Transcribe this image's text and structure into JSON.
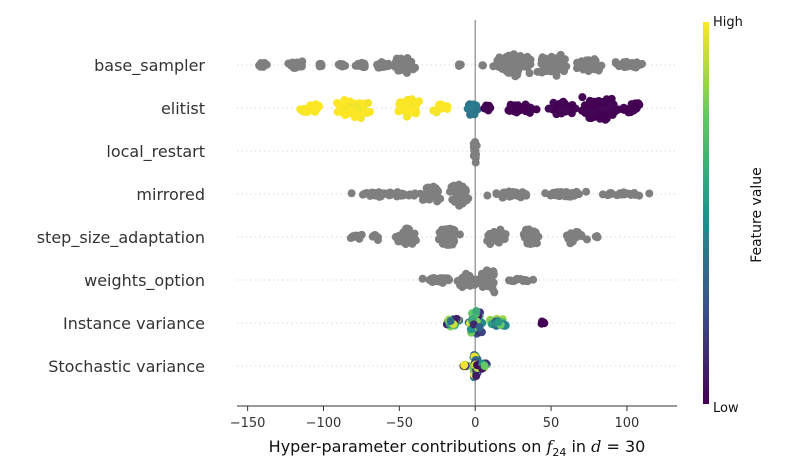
{
  "chart_data": {
    "type": "scatter",
    "subtype": "beeswarm",
    "xlabel": {
      "prefix": "Hyper-parameter contributions on ",
      "f_base": "f",
      "f_sub": "24",
      "middle": " in ",
      "d_var": "d",
      "d_rest": " = 30"
    },
    "xlim": [
      -157,
      133
    ],
    "xticks": [
      -150,
      -100,
      -50,
      0,
      50,
      100
    ],
    "xtick_labels": [
      "−150",
      "−100",
      "−50",
      "0",
      "50",
      "100"
    ],
    "grid": false,
    "zero_line": 0,
    "colorbar": {
      "title": "Feature value",
      "high_label": "High",
      "low_label": "Low",
      "colormap": [
        "#440154",
        "#3b528b",
        "#21918c",
        "#5ec962",
        "#fde725"
      ]
    },
    "features": [
      {
        "name": "base_sampler",
        "colored": false,
        "color": "#7f7f7f",
        "clusters": [
          {
            "x": -140,
            "spread": 3,
            "count": 10,
            "width": 0.2
          },
          {
            "x": -118,
            "spread": 6,
            "count": 22,
            "width": 0.4
          },
          {
            "x": -102,
            "spread": 2,
            "count": 6,
            "width": 0.15
          },
          {
            "x": -88,
            "spread": 3,
            "count": 12,
            "width": 0.2
          },
          {
            "x": -75,
            "spread": 5,
            "count": 18,
            "width": 0.25
          },
          {
            "x": -62,
            "spread": 5,
            "count": 16,
            "width": 0.3
          },
          {
            "x": -48,
            "spread": 7,
            "count": 40,
            "width": 0.7
          },
          {
            "x": -10,
            "spread": 1,
            "count": 3,
            "width": 0.1
          },
          {
            "x": 5,
            "spread": 1,
            "count": 3,
            "width": 0.1
          },
          {
            "x": 25,
            "spread": 10,
            "count": 80,
            "width": 1.0
          },
          {
            "x": 50,
            "spread": 10,
            "count": 75,
            "width": 0.85
          },
          {
            "x": 75,
            "spread": 8,
            "count": 40,
            "width": 0.5
          },
          {
            "x": 100,
            "spread": 8,
            "count": 30,
            "width": 0.3
          }
        ]
      },
      {
        "name": "elitist",
        "colored": true,
        "clusters": [
          {
            "x": -108,
            "spread": 8,
            "count": 25,
            "width": 0.4,
            "value": 1.0
          },
          {
            "x": -80,
            "spread": 10,
            "count": 60,
            "width": 0.9,
            "value": 1.0
          },
          {
            "x": -45,
            "spread": 8,
            "count": 45,
            "width": 0.8,
            "value": 1.0
          },
          {
            "x": -22,
            "spread": 5,
            "count": 18,
            "width": 0.35,
            "value": 1.0
          },
          {
            "x": -2,
            "spread": 4,
            "count": 28,
            "width": 0.6,
            "value": 0.4
          },
          {
            "x": 8,
            "spread": 3,
            "count": 10,
            "width": 0.4,
            "value": 0.0
          },
          {
            "x": 30,
            "spread": 10,
            "count": 45,
            "width": 0.4,
            "value": 0.0
          },
          {
            "x": 58,
            "spread": 9,
            "count": 40,
            "width": 0.65,
            "value": 0.0
          },
          {
            "x": 82,
            "spread": 10,
            "count": 80,
            "width": 1.0,
            "value": 0.0
          },
          {
            "x": 103,
            "spread": 6,
            "count": 25,
            "width": 0.5,
            "value": 0.0
          }
        ]
      },
      {
        "name": "local_restart",
        "colored": false,
        "color": "#7f7f7f",
        "clusters": [
          {
            "x": 0,
            "spread": 1,
            "count": 30,
            "width": 0.9
          }
        ]
      },
      {
        "name": "mirrored",
        "colored": false,
        "color": "#7f7f7f",
        "clusters": [
          {
            "x": -55,
            "spread": 20,
            "count": 40,
            "width": 0.25
          },
          {
            "x": -30,
            "spread": 6,
            "count": 35,
            "width": 0.7
          },
          {
            "x": -10,
            "spread": 5,
            "count": 50,
            "width": 1.0
          },
          {
            "x": 25,
            "spread": 12,
            "count": 45,
            "width": 0.3
          },
          {
            "x": 60,
            "spread": 12,
            "count": 35,
            "width": 0.25
          },
          {
            "x": 95,
            "spread": 14,
            "count": 25,
            "width": 0.15
          }
        ]
      },
      {
        "name": "step_size_adaptation",
        "colored": false,
        "color": "#7f7f7f",
        "clusters": [
          {
            "x": -78,
            "spread": 4,
            "count": 15,
            "width": 0.2
          },
          {
            "x": -66,
            "spread": 3,
            "count": 10,
            "width": 0.25
          },
          {
            "x": -45,
            "spread": 6,
            "count": 40,
            "width": 0.75
          },
          {
            "x": -18,
            "spread": 6,
            "count": 50,
            "width": 0.85
          },
          {
            "x": 15,
            "spread": 6,
            "count": 35,
            "width": 0.6
          },
          {
            "x": 36,
            "spread": 4,
            "count": 35,
            "width": 0.75
          },
          {
            "x": 65,
            "spread": 6,
            "count": 30,
            "width": 0.55
          },
          {
            "x": 80,
            "spread": 2,
            "count": 5,
            "width": 0.15
          }
        ]
      },
      {
        "name": "weights_option",
        "colored": false,
        "color": "#7f7f7f",
        "clusters": [
          {
            "x": -25,
            "spread": 8,
            "count": 30,
            "width": 0.25
          },
          {
            "x": -5,
            "spread": 6,
            "count": 40,
            "width": 0.6
          },
          {
            "x": 8,
            "spread": 4,
            "count": 35,
            "width": 1.0
          },
          {
            "x": 28,
            "spread": 8,
            "count": 20,
            "width": 0.2
          }
        ]
      },
      {
        "name": "Instance variance",
        "colored": true,
        "clusters": [
          {
            "x": -15,
            "spread": 5,
            "count": 25,
            "width": 0.35,
            "value": "random"
          },
          {
            "x": 0,
            "spread": 4,
            "count": 60,
            "width": 1.0,
            "value": "random"
          },
          {
            "x": 15,
            "spread": 5,
            "count": 25,
            "width": 0.45,
            "value": "random"
          },
          {
            "x": 45,
            "spread": 1.5,
            "count": 6,
            "width": 0.15,
            "value": 0.0
          }
        ]
      },
      {
        "name": "Stochastic variance",
        "colored": true,
        "clusters": [
          {
            "x": -6,
            "spread": 2,
            "count": 8,
            "width": 0.15,
            "value": "random"
          },
          {
            "x": 0,
            "spread": 1.5,
            "count": 45,
            "width": 1.0,
            "value": "random"
          },
          {
            "x": 6,
            "spread": 2,
            "count": 10,
            "width": 0.3,
            "value": "random"
          }
        ]
      }
    ]
  }
}
